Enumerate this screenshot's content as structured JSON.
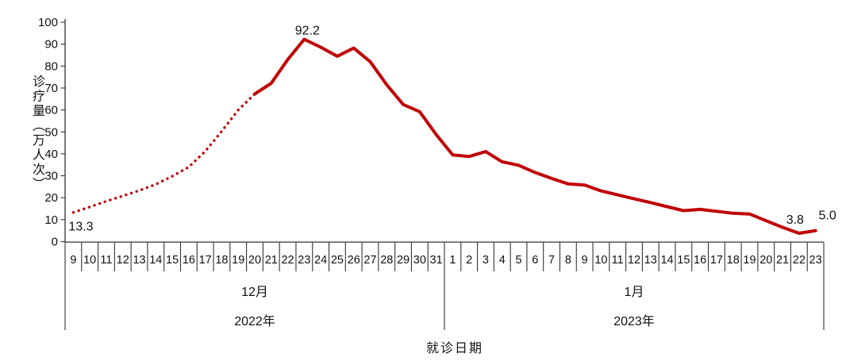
{
  "chart_data": {
    "type": "line",
    "title": "",
    "ylabel": "诊疗量（万人次）",
    "xlabel": "就诊日期",
    "ylim": [
      0,
      100
    ],
    "yticks": [
      "0",
      "10",
      "20",
      "30",
      "40",
      "50",
      "60",
      "70",
      "80",
      "90",
      "100"
    ],
    "grid": false,
    "legend": "none",
    "categories": [
      "9",
      "10",
      "11",
      "12",
      "13",
      "14",
      "15",
      "16",
      "17",
      "18",
      "19",
      "20",
      "21",
      "22",
      "23",
      "24",
      "25",
      "26",
      "27",
      "28",
      "29",
      "30",
      "31",
      "1",
      "2",
      "3",
      "4",
      "5",
      "6",
      "7",
      "8",
      "9",
      "10",
      "11",
      "12",
      "13",
      "14",
      "15",
      "16",
      "17",
      "18",
      "19",
      "20",
      "21",
      "22",
      "23"
    ],
    "groups": [
      {
        "month": "12月",
        "year": "2022年",
        "span": 23
      },
      {
        "month": "1月",
        "year": "2023年",
        "span": 23
      }
    ],
    "series": [
      {
        "color": "#c00000",
        "dotted_until_category_index": 11,
        "values": [
          13.3,
          15.8,
          18.4,
          20.8,
          23.3,
          26.1,
          29.8,
          34.0,
          41.2,
          50.3,
          60.0,
          67.3,
          72.2,
          83.0,
          92.2,
          88.6,
          84.5,
          88.2,
          82.0,
          71.5,
          62.5,
          59.2,
          48.8,
          39.5,
          38.8,
          41.0,
          36.4,
          34.8,
          31.5,
          28.8,
          26.3,
          25.8,
          23.1,
          21.3,
          19.5,
          17.8,
          15.9,
          14.1,
          14.7,
          13.8,
          12.9,
          12.6,
          9.5,
          6.5,
          3.8,
          5.0
        ]
      }
    ],
    "annotations": [
      {
        "text": "13.3",
        "index": 0
      },
      {
        "text": "92.2",
        "index": 14
      },
      {
        "text": "3.8",
        "index": 44
      },
      {
        "text": "5.0",
        "index": 45
      }
    ],
    "axis_color": "#333333",
    "text_color": "#111111"
  }
}
